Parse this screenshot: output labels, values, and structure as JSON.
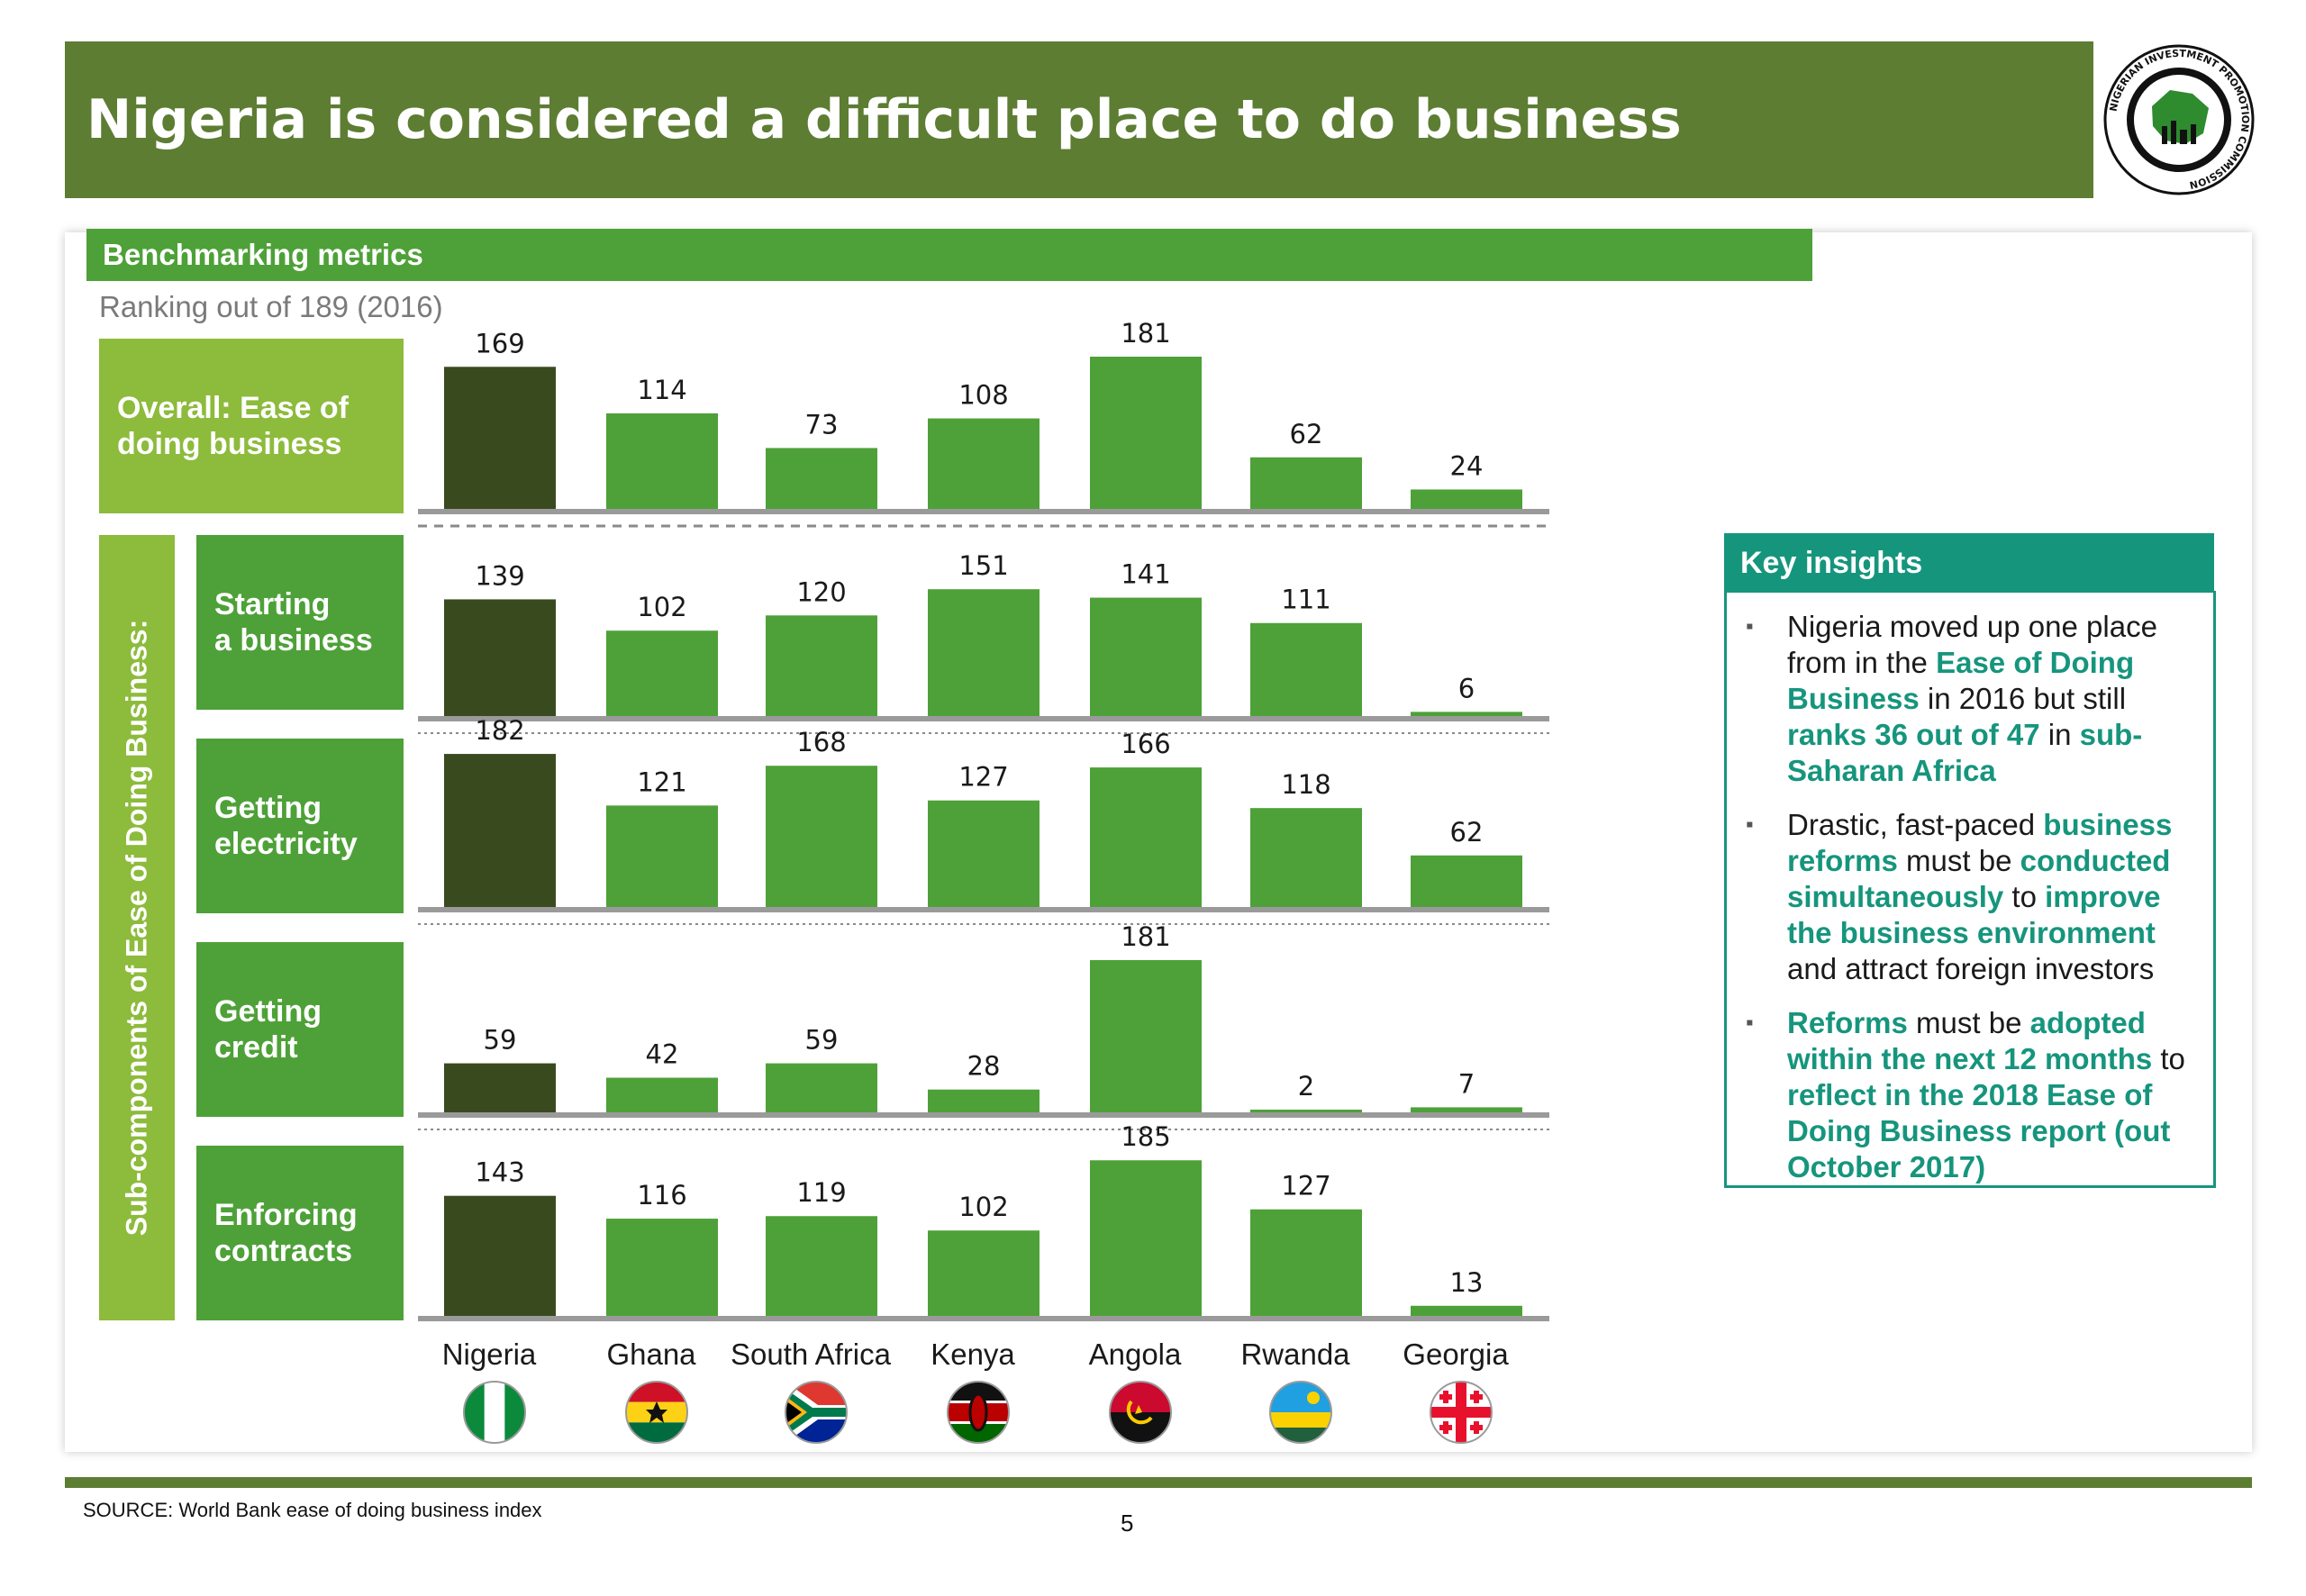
{
  "title": "Nigeria is considered a difficult place to do business",
  "section": {
    "title": "Benchmarking metrics",
    "subtitle": "Ranking out of 189 (2016)"
  },
  "rows": {
    "overall_label": "Overall: Ease of doing business",
    "sub_group_label": "Sub-components of Ease of Doing Business:",
    "starting_label": [
      "Starting",
      "a business"
    ],
    "electricity_label": [
      "Getting",
      "electricity"
    ],
    "credit_label": [
      "Getting",
      "credit"
    ],
    "contracts_label": [
      "Enforcing",
      "contracts"
    ]
  },
  "colors": {
    "header": "#5d7d33",
    "bar": "#4ea138",
    "bar_highlight": "#3a4a1f",
    "label_box": "#4ea138",
    "overall_box": "#8dbb3c",
    "insights": "#16957d",
    "axis": "#9a9a9a"
  },
  "chart_data": {
    "type": "bar",
    "title": "Ranking out of 189 (2016)",
    "categories": [
      "Nigeria",
      "Ghana",
      "South Africa",
      "Kenya",
      "Angola",
      "Rwanda",
      "Georgia"
    ],
    "flags": [
      "nigeria-flag-icon",
      "ghana-flag-icon",
      "south-africa-flag-icon",
      "kenya-flag-icon",
      "angola-flag-icon",
      "rwanda-flag-icon",
      "georgia-flag-icon"
    ],
    "highlight_category": "Nigeria",
    "ymax": 189,
    "series": [
      {
        "name": "Overall: Ease of doing business",
        "values": [
          169,
          114,
          73,
          108,
          181,
          62,
          24
        ]
      },
      {
        "name": "Starting a business",
        "values": [
          139,
          102,
          120,
          151,
          141,
          111,
          6
        ]
      },
      {
        "name": "Getting electricity",
        "values": [
          182,
          121,
          168,
          127,
          166,
          118,
          62
        ]
      },
      {
        "name": "Getting credit",
        "values": [
          59,
          42,
          59,
          28,
          181,
          2,
          7
        ]
      },
      {
        "name": "Enforcing contracts",
        "values": [
          143,
          116,
          119,
          102,
          185,
          127,
          13
        ]
      }
    ]
  },
  "insights": {
    "title": "Key insights",
    "items": [
      [
        {
          "t": "Nigeria moved up one place from in the ",
          "h": false
        },
        {
          "t": "Ease of Doing Business",
          "h": true
        },
        {
          "t": " in 2016 but still ",
          "h": false
        },
        {
          "t": "ranks 36 out of 47",
          "h": true
        },
        {
          "t": " in ",
          "h": false
        },
        {
          "t": "sub-Saharan Africa",
          "h": true
        }
      ],
      [
        {
          "t": "Drastic, fast-paced ",
          "h": false
        },
        {
          "t": "business reforms",
          "h": true
        },
        {
          "t": " must be ",
          "h": false
        },
        {
          "t": "conducted simultaneously",
          "h": true
        },
        {
          "t": " to ",
          "h": false
        },
        {
          "t": "improve the business environment",
          "h": true
        },
        {
          "t": " and attract foreign investors",
          "h": false
        }
      ],
      [
        {
          "t": "Reforms",
          "h": true
        },
        {
          "t": " must be ",
          "h": false
        },
        {
          "t": "adopted within the next 12 months",
          "h": true
        },
        {
          "t": " to ",
          "h": false
        },
        {
          "t": "reflect in the 2018 Ease of Doing Business report (out October 2017)",
          "h": true
        }
      ]
    ]
  },
  "footer": {
    "source": "SOURCE: World Bank ease of doing business index",
    "page_number": "5"
  }
}
